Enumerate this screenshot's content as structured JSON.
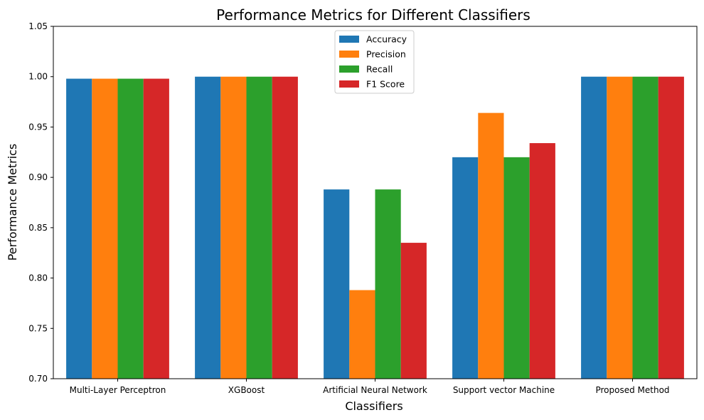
{
  "chart_data": {
    "type": "bar",
    "title": "Performance Metrics for Different Classifiers",
    "xlabel": "Classifiers",
    "ylabel": "Performance Metrics",
    "ylim": [
      0.7,
      1.05
    ],
    "yticks": [
      "0.70",
      "0.75",
      "0.80",
      "0.85",
      "0.90",
      "0.95",
      "1.00",
      "1.05"
    ],
    "categories": [
      "Multi-Layer Perceptron",
      "XGBoost",
      "Artificial Neural Network",
      "Support vector Machine",
      "Proposed Method"
    ],
    "series": [
      {
        "name": "Accuracy",
        "color": "#1f77b4",
        "values": [
          0.998,
          1.0,
          0.888,
          0.92,
          1.0
        ]
      },
      {
        "name": "Precision",
        "color": "#ff7f0e",
        "values": [
          0.998,
          1.0,
          0.788,
          0.964,
          1.0
        ]
      },
      {
        "name": "Recall",
        "color": "#2ca02c",
        "values": [
          0.998,
          1.0,
          0.888,
          0.92,
          1.0
        ]
      },
      {
        "name": "F1 Score",
        "color": "#d62728",
        "values": [
          0.998,
          1.0,
          0.835,
          0.934,
          1.0
        ]
      }
    ],
    "legend_position": "top-center",
    "grid": false
  }
}
